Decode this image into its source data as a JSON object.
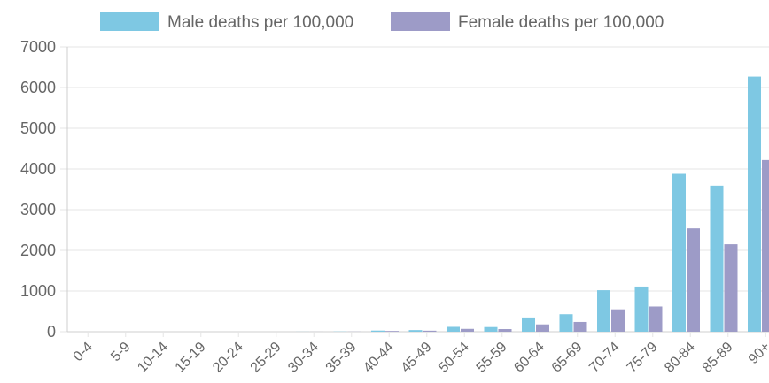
{
  "chart_data": {
    "type": "bar",
    "categories": [
      "0-4",
      "5-9",
      "10-14",
      "15-19",
      "20-24",
      "25-29",
      "30-34",
      "35-39",
      "40-44",
      "45-49",
      "50-54",
      "55-59",
      "60-64",
      "65-69",
      "70-74",
      "75-79",
      "80-84",
      "85-89",
      "90+"
    ],
    "series": [
      {
        "name": "Male deaths per 100,000",
        "color": "#7ec8e3",
        "values": [
          0,
          0,
          0,
          0,
          0,
          0,
          2,
          5,
          28,
          40,
          120,
          115,
          350,
          430,
          1020,
          1110,
          3880,
          3590,
          6270
        ]
      },
      {
        "name": "Female deaths per 100,000",
        "color": "#9d9bc7",
        "values": [
          0,
          0,
          0,
          0,
          0,
          0,
          1,
          3,
          18,
          25,
          70,
          65,
          180,
          240,
          550,
          620,
          2540,
          2150,
          4220
        ]
      }
    ],
    "yticks": [
      "0",
      "1000",
      "2000",
      "3000",
      "4000",
      "5000",
      "6000",
      "7000"
    ],
    "ylim": [
      0,
      7000
    ],
    "title": "",
    "xlabel": "",
    "ylabel": "",
    "legend_position": "top",
    "grid": true
  }
}
